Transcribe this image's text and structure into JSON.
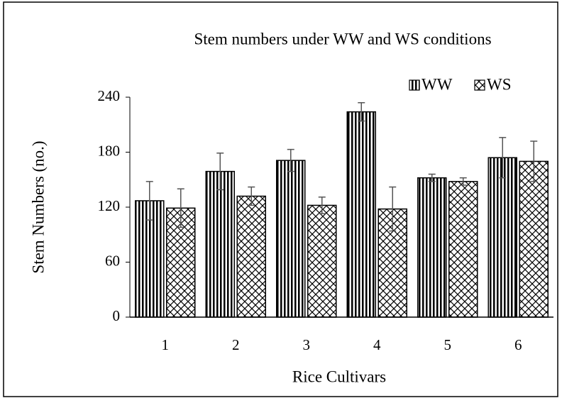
{
  "chart_data": {
    "type": "bar",
    "title": "Stem numbers under WW and WS conditions",
    "x_label": "Rice Cultivars",
    "y_label": "Stem Numbers  (no.)",
    "categories": [
      "1",
      "2",
      "3",
      "4",
      "5",
      "6"
    ],
    "series": [
      {
        "name": "WW",
        "color": "#000000",
        "pattern": "vertical-lines",
        "values": [
          127,
          159,
          171,
          224,
          152,
          174
        ],
        "errors": [
          21,
          20,
          12,
          10,
          4,
          22
        ]
      },
      {
        "name": "WS",
        "color": "#000000",
        "pattern": "diagonal-cross",
        "values": [
          119,
          132,
          122,
          118,
          148,
          170
        ],
        "errors": [
          21,
          10,
          9,
          24,
          4,
          22
        ]
      }
    ],
    "ylim": [
      0,
      240
    ],
    "yticks": [
      0,
      60,
      120,
      180,
      240
    ],
    "legend": "top-right"
  }
}
